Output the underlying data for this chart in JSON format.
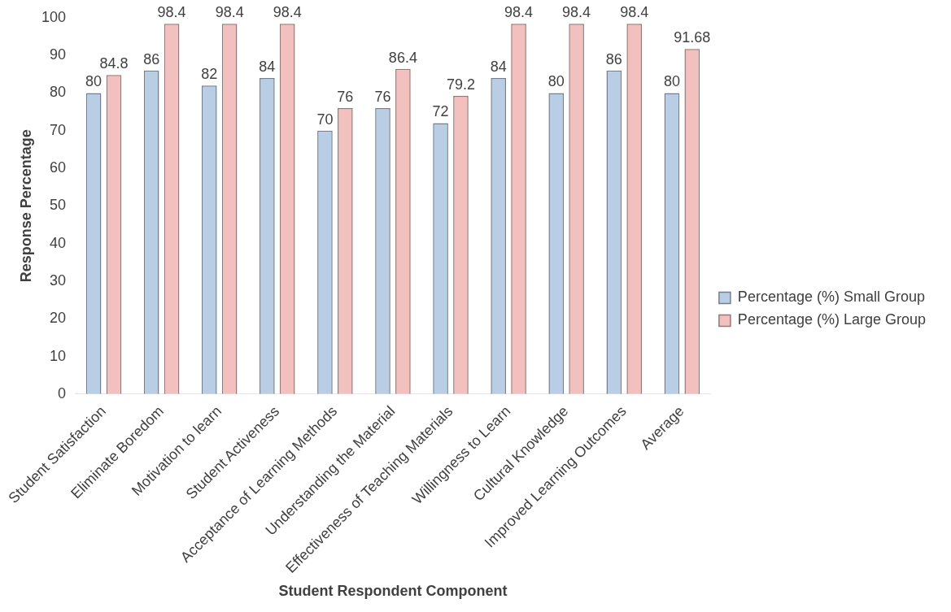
{
  "chart_data": {
    "type": "bar",
    "xlabel": "Student Respondent Component",
    "ylabel": "Response Percentage",
    "categories": [
      "Student Satisfaction",
      "Eliminate Boredom",
      "Motivation to learn",
      "Student Activeness",
      "Acceptance of Learning Methods",
      "Understanding the Material",
      "Effectiveness of Teaching Materials",
      "Willingness to Learn",
      "Cultural Knowledge",
      "Improved Learning Outcomes",
      "Average"
    ],
    "series": [
      {
        "name": "Percentage (%) Small Group",
        "color": "#b9cde5",
        "values": [
          80,
          86,
          82,
          84,
          70,
          76,
          72,
          84,
          80,
          86,
          80
        ]
      },
      {
        "name": "Percentage (%) Large Group",
        "color": "#f2c0bf",
        "values": [
          84.8,
          98.4,
          98.4,
          98.4,
          76,
          86.4,
          79.2,
          98.4,
          98.4,
          98.4,
          91.68
        ]
      }
    ],
    "ylim": [
      0,
      100
    ],
    "yticks": [
      0,
      10,
      20,
      30,
      40,
      50,
      60,
      70,
      80,
      90,
      100
    ],
    "grid": false,
    "legend": "right",
    "data_labels": true
  }
}
